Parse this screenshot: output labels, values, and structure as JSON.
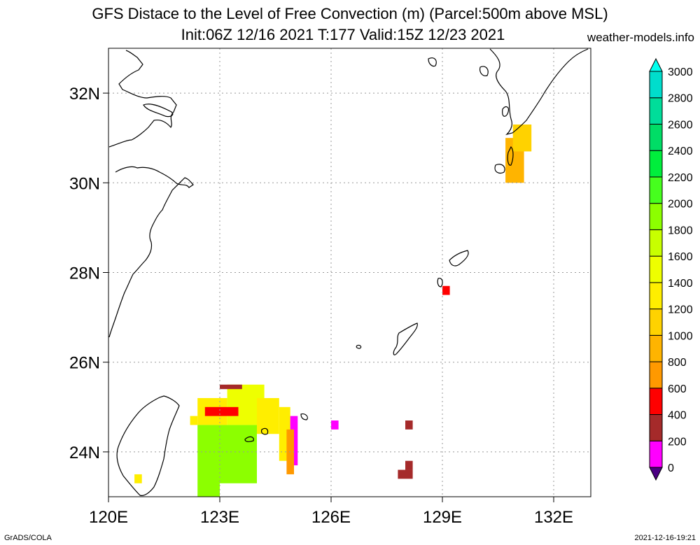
{
  "title": {
    "line1": "GFS Distace to the Level of Free Convection (m) (Parcel:500m above MSL)",
    "line2": "Init:06Z 12/16 2021 T:177 Valid:15Z 12/23 2021"
  },
  "site": "weather-models.info",
  "footer": {
    "left": "GrADS/COLA",
    "right": "2021-12-16-19:21"
  },
  "map": {
    "lon_range": [
      120,
      133
    ],
    "lat_range": [
      23,
      33
    ],
    "lon_ticks": [
      {
        "value": 120,
        "label": "120E"
      },
      {
        "value": 123,
        "label": "123E"
      },
      {
        "value": 126,
        "label": "126E"
      },
      {
        "value": 129,
        "label": "129E"
      },
      {
        "value": 132,
        "label": "132E"
      }
    ],
    "lat_ticks": [
      {
        "value": 24,
        "label": "24N"
      },
      {
        "value": 26,
        "label": "26N"
      },
      {
        "value": 28,
        "label": "28N"
      },
      {
        "value": 30,
        "label": "30N"
      },
      {
        "value": 32,
        "label": "32N"
      }
    ],
    "grid": true,
    "coastline_color": "#000000"
  },
  "colorbar": {
    "levels": [
      0,
      200,
      400,
      600,
      800,
      1000,
      1200,
      1400,
      1600,
      1800,
      2000,
      2200,
      2400,
      2600,
      2800,
      3000
    ],
    "labels": [
      "0",
      "200",
      "400",
      "600",
      "800",
      "1000",
      "1200",
      "1400",
      "1600",
      "1800",
      "2000",
      "2200",
      "2400",
      "2600",
      "2800",
      "3000"
    ],
    "colors": [
      "#4b0082",
      "#ff00ff",
      "#a52a2a",
      "#ff0000",
      "#ff9900",
      "#ffb400",
      "#ffd200",
      "#ffee00",
      "#eeff00",
      "#c8ff00",
      "#8cff00",
      "#46ff1e",
      "#00ee3c",
      "#00dd66",
      "#00dd9a",
      "#00ddcc",
      "#00ffee"
    ]
  },
  "field_patches": [
    {
      "lon": [
        120.7,
        120.9
      ],
      "lat": [
        23.3,
        23.5
      ],
      "value": 1300
    },
    {
      "lon": [
        122.2,
        122.4
      ],
      "lat": [
        24.6,
        24.8
      ],
      "value": 1300
    },
    {
      "lon": [
        122.4,
        123.0
      ],
      "lat": [
        23.0,
        24.6
      ],
      "value": 1900
    },
    {
      "lon": [
        123.0,
        124.0
      ],
      "lat": [
        23.3,
        24.6
      ],
      "value": 1950
    },
    {
      "lon": [
        122.4,
        123.2
      ],
      "lat": [
        24.6,
        25.2
      ],
      "value": 1300
    },
    {
      "lon": [
        123.2,
        124.2
      ],
      "lat": [
        24.6,
        25.5
      ],
      "value": 1500
    },
    {
      "lon": [
        122.6,
        123.5
      ],
      "lat": [
        24.8,
        25.0
      ],
      "value": 500
    },
    {
      "lon": [
        123.0,
        123.6
      ],
      "lat": [
        25.4,
        25.5
      ],
      "value": 200
    },
    {
      "lon": [
        124.0,
        124.6
      ],
      "lat": [
        24.4,
        25.2
      ],
      "value": 1300
    },
    {
      "lon": [
        124.6,
        124.9
      ],
      "lat": [
        23.8,
        25.0
      ],
      "value": 1200
    },
    {
      "lon": [
        124.9,
        125.1
      ],
      "lat": [
        23.7,
        24.8
      ],
      "value": 100
    },
    {
      "lon": [
        124.8,
        125.0
      ],
      "lat": [
        23.5,
        24.5
      ],
      "value": 700
    },
    {
      "lon": [
        126.0,
        126.2
      ],
      "lat": [
        24.5,
        24.7
      ],
      "value": 100
    },
    {
      "lon": [
        128.0,
        128.2
      ],
      "lat": [
        24.5,
        24.7
      ],
      "value": 300
    },
    {
      "lon": [
        127.8,
        128.2
      ],
      "lat": [
        23.4,
        23.6
      ],
      "value": 300
    },
    {
      "lon": [
        128.0,
        128.2
      ],
      "lat": [
        23.6,
        23.8
      ],
      "value": 300
    },
    {
      "lon": [
        129.0,
        129.2
      ],
      "lat": [
        27.5,
        27.7
      ],
      "value": 500
    },
    {
      "lon": [
        130.7,
        131.2
      ],
      "lat": [
        30.0,
        31.0
      ],
      "value": 900
    },
    {
      "lon": [
        130.9,
        131.4
      ],
      "lat": [
        30.7,
        31.3
      ],
      "value": 1000
    }
  ]
}
